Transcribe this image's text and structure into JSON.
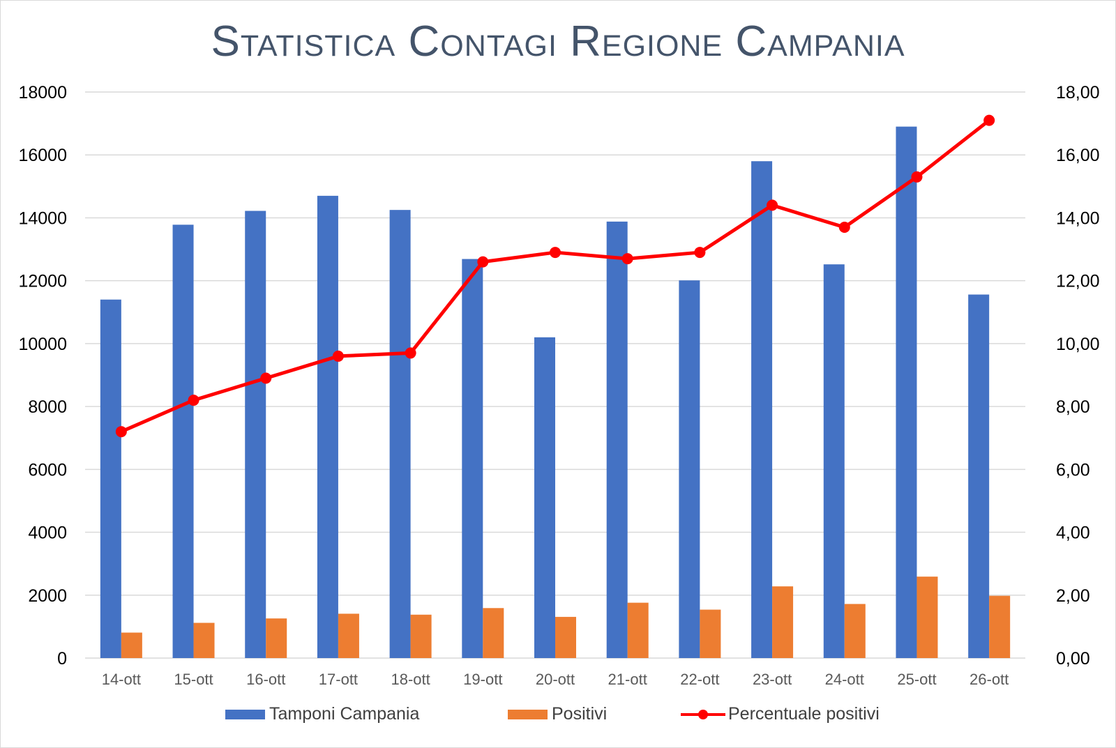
{
  "chart_data": {
    "type": "bar",
    "title": "Statistica Contagi Regione Campania",
    "categories": [
      "14-ott",
      "15-ott",
      "16-ott",
      "17-ott",
      "18-ott",
      "19-ott",
      "20-ott",
      "21-ott",
      "22-ott",
      "23-ott",
      "24-ott",
      "25-ott",
      "26-ott"
    ],
    "series": [
      {
        "name": "Tamponi Campania",
        "type": "bar",
        "axis": "left",
        "color": "#4472c4",
        "values": [
          11400,
          13780,
          14220,
          14700,
          14250,
          12690,
          10200,
          13880,
          12010,
          15800,
          12520,
          16900,
          11560
        ]
      },
      {
        "name": "Positivi",
        "type": "bar",
        "axis": "left",
        "color": "#ed7d31",
        "values": [
          810,
          1120,
          1260,
          1410,
          1380,
          1590,
          1310,
          1760,
          1540,
          2280,
          1720,
          2590,
          1980
        ]
      },
      {
        "name": "Percentuale positivi",
        "type": "line",
        "axis": "right",
        "color": "#ff0000",
        "values": [
          7.2,
          8.2,
          8.9,
          9.6,
          9.7,
          12.6,
          12.9,
          12.7,
          12.9,
          14.4,
          13.7,
          15.3,
          17.1
        ]
      }
    ],
    "y_left": {
      "min": 0,
      "max": 18000,
      "ticks": [
        "0",
        "2000",
        "4000",
        "6000",
        "8000",
        "10000",
        "12000",
        "14000",
        "16000",
        "18000"
      ]
    },
    "y_right": {
      "min": 0,
      "max": 18,
      "ticks": [
        "0,00",
        "2,00",
        "4,00",
        "6,00",
        "8,00",
        "10,00",
        "12,00",
        "14,00",
        "16,00",
        "18,00"
      ]
    },
    "grid": true,
    "legend": "bottom"
  }
}
